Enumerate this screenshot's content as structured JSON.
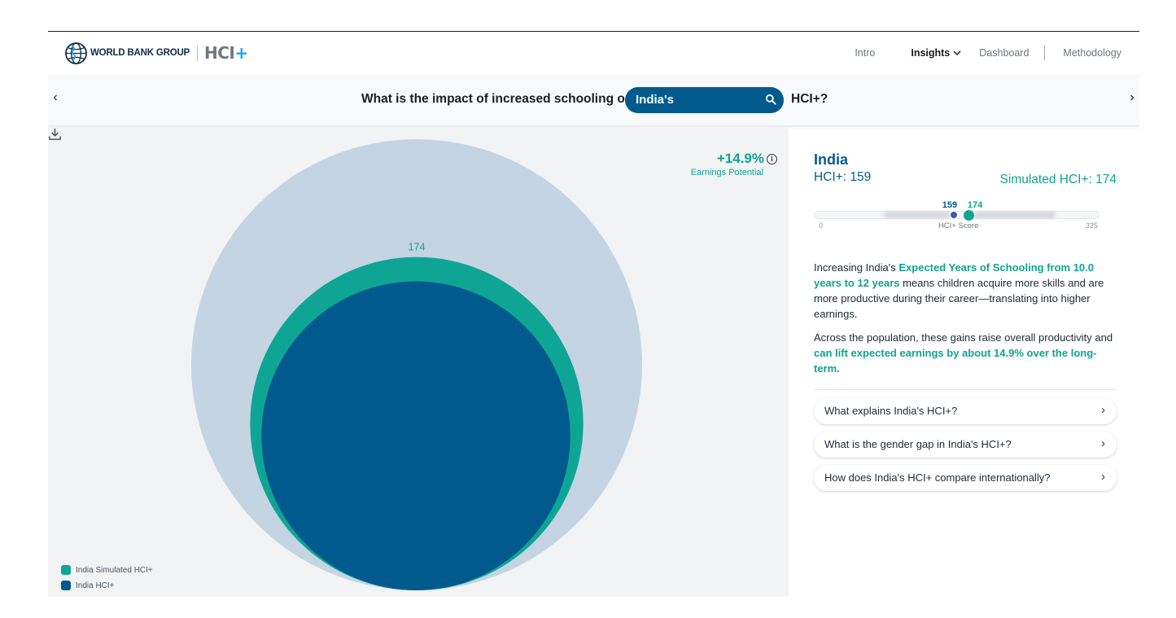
{
  "header": {
    "org_name": "WORLD BANK GROUP",
    "product": "HCI",
    "product_suffix": "+",
    "nav": {
      "intro": "Intro",
      "insights": "Insights",
      "dashboard": "Dashboard",
      "methodology": "Methodology"
    }
  },
  "question_bar": {
    "prefix": "What is the impact of increased schooling on",
    "country_value": "India's",
    "suffix": "HCI+?",
    "prev_arrow": "‹",
    "next_arrow": "›"
  },
  "chart": {
    "kpi_value": "+14.9%",
    "kpi_label": "Earnings Potential",
    "info_glyph": "i",
    "legend": [
      {
        "label": "India Simulated HCI+",
        "color": "#0ea594"
      },
      {
        "label": "India HCI+",
        "color": "#005a8e"
      }
    ],
    "icons": {
      "download": "download-icon",
      "info": "info-icon"
    }
  },
  "chart_data": {
    "type": "bubble",
    "title": "",
    "max_value": 325,
    "series": [
      {
        "name": "India Simulated HCI+",
        "value": 174,
        "color": "#0ea594"
      },
      {
        "name": "India HCI+",
        "value": 159,
        "color": "#005a8e"
      }
    ],
    "labels": [
      "174"
    ],
    "background_color": "#c4d4e3"
  },
  "panel": {
    "country": "India",
    "hci_current": "HCI+: 159",
    "hci_simulated": "Simulated HCI+: 174",
    "scale": {
      "min": "0",
      "max": "325",
      "axis_label": "HCI+ Score",
      "current": 159,
      "simulated": 174,
      "current_label": "159",
      "simulated_label": "174",
      "range": 325
    },
    "p1": {
      "t1": "Increasing India's ",
      "h1": "Expected Years of Schooling from 10.0 years to 12 years",
      "t2": " means children acquire more skills and are more productive during their career—translating into higher earnings."
    },
    "p2": {
      "t1": "Across the population, these gains raise overall productivity and ",
      "h1": "can lift expected earnings by about 14.9% over the long-term."
    },
    "links": [
      "What explains India's HCI+?",
      "What is the gender gap in India's HCI+?",
      "How does India's HCI+ compare internationally?"
    ],
    "link_arrow": "›"
  },
  "colors": {
    "brand_blue": "#005a8e",
    "teal": "#11a38e",
    "max_bubble": "#c4d4e3"
  }
}
